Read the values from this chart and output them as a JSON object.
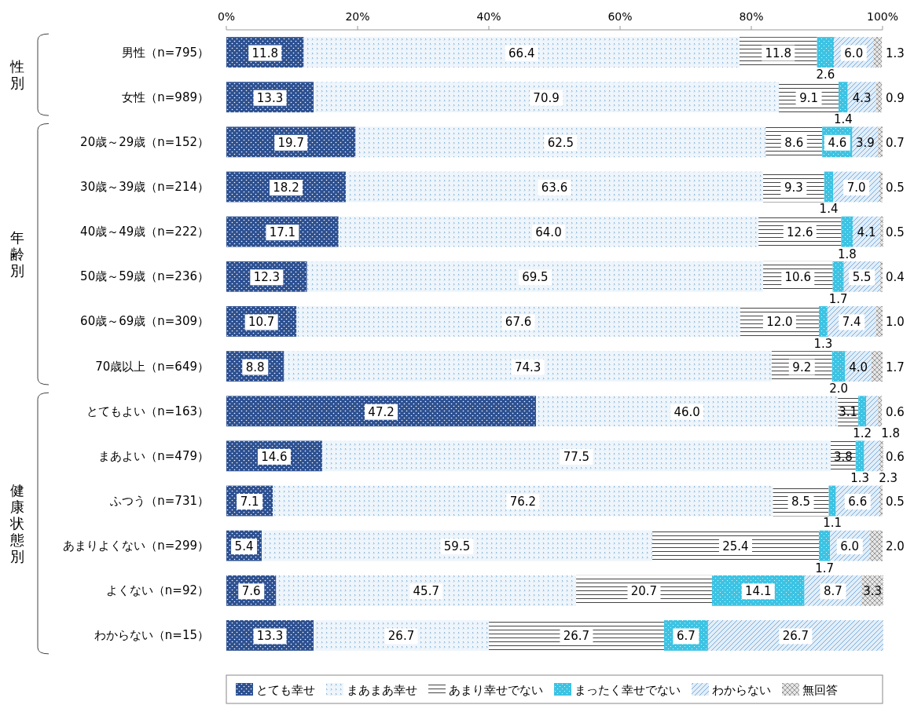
{
  "chart_data": {
    "type": "bar",
    "orientation": "horizontal",
    "stacked": true,
    "legend": "bottom",
    "categories": [
      "男性（n=795）",
      "女性（n=989）",
      "20歳～29歳（n=152）",
      "30歳～39歳（n=214）",
      "40歳～49歳（n=222）",
      "50歳～59歳（n=236）",
      "60歳～69歳（n=309）",
      "70歳以上（n=649）",
      "とてもよい（n=163）",
      "まあよい（n=479）",
      "ふつう（n=731）",
      "あまりよくない（n=299）",
      "よくない（n=92）",
      "わからない（n=15）"
    ],
    "xlim": [
      0,
      100
    ],
    "xticks": [
      {
        "value": 0,
        "label": "0%"
      },
      {
        "value": 20,
        "label": "20%"
      },
      {
        "value": 40,
        "label": "40%"
      },
      {
        "value": 60,
        "label": "60%"
      },
      {
        "value": 80,
        "label": "80%"
      },
      {
        "value": 100,
        "label": "100%"
      }
    ],
    "series": [
      {
        "name": "とても幸せ",
        "color": "#2c5091",
        "values": [
          11.8,
          13.3,
          19.7,
          18.2,
          17.1,
          12.3,
          10.7,
          8.8,
          47.2,
          14.6,
          7.1,
          5.4,
          7.6,
          13.3
        ],
        "value_labels": [
          "11.8",
          "13.3",
          "19.7",
          "18.2",
          "17.1",
          "12.3",
          "10.7",
          "8.8",
          "47.2",
          "14.6",
          "7.1",
          "5.4",
          "7.6",
          "13.3"
        ]
      },
      {
        "name": "まあまあ幸せ",
        "color": "#eef5fb",
        "values": [
          66.4,
          70.9,
          62.5,
          63.6,
          64.0,
          69.5,
          67.6,
          74.3,
          46.0,
          77.5,
          76.2,
          59.5,
          45.7,
          26.7
        ],
        "value_labels": [
          "66.4",
          "70.9",
          "62.5",
          "63.6",
          "64.0",
          "69.5",
          "67.6",
          "74.3",
          "46.0",
          "77.5",
          "76.2",
          "59.5",
          "45.7",
          "26.7"
        ]
      },
      {
        "name": "あまり幸せでない",
        "color": "#ffffff",
        "values": [
          11.8,
          9.1,
          8.6,
          9.3,
          12.6,
          10.6,
          12.0,
          9.2,
          3.1,
          3.8,
          8.5,
          25.4,
          20.7,
          26.7
        ],
        "value_labels": [
          "11.8",
          "9.1",
          "8.6",
          "9.3",
          "12.6",
          "10.6",
          "12.0",
          "9.2",
          "3.1",
          "3.8",
          "8.5",
          "25.4",
          "20.7",
          "26.7"
        ]
      },
      {
        "name": "まったく幸せでない",
        "color": "#3cc3e3",
        "values": [
          2.6,
          1.4,
          4.6,
          1.4,
          1.8,
          1.7,
          1.3,
          2.0,
          1.2,
          1.3,
          1.1,
          1.7,
          14.1,
          6.7
        ],
        "value_labels": [
          "2.6",
          "1.4",
          "4.6",
          "1.4",
          "1.8",
          "1.7",
          "1.3",
          "2.0",
          "1.2",
          "1.3",
          "1.1",
          "1.7",
          "14.1",
          "6.7"
        ]
      },
      {
        "name": "わからない",
        "color": "#e3eef8",
        "values": [
          6.0,
          4.3,
          3.9,
          7.0,
          4.1,
          5.5,
          7.4,
          4.0,
          1.8,
          2.3,
          6.6,
          6.0,
          8.7,
          26.7
        ],
        "value_labels": [
          "6.0",
          "4.3",
          "3.9",
          "7.0",
          "4.1",
          "5.5",
          "7.4",
          "4.0",
          "1.8",
          "2.3",
          "6.6",
          "6.0",
          "8.7",
          "26.7"
        ]
      },
      {
        "name": "無回答",
        "color": "#e6e6e6",
        "values": [
          1.3,
          0.9,
          0.7,
          0.5,
          0.5,
          0.4,
          1.0,
          1.7,
          0.6,
          0.6,
          0.5,
          2.0,
          3.3,
          null
        ],
        "value_labels": [
          "1.3",
          "0.9",
          "0.7",
          "0.5",
          "0.5",
          "0.4",
          "1.0",
          "1.7",
          "0.6",
          "0.6",
          "0.5",
          "2.0",
          "3.3",
          null
        ]
      }
    ],
    "annotations": [
      "性別",
      "年齢別",
      "健康状態別"
    ]
  }
}
